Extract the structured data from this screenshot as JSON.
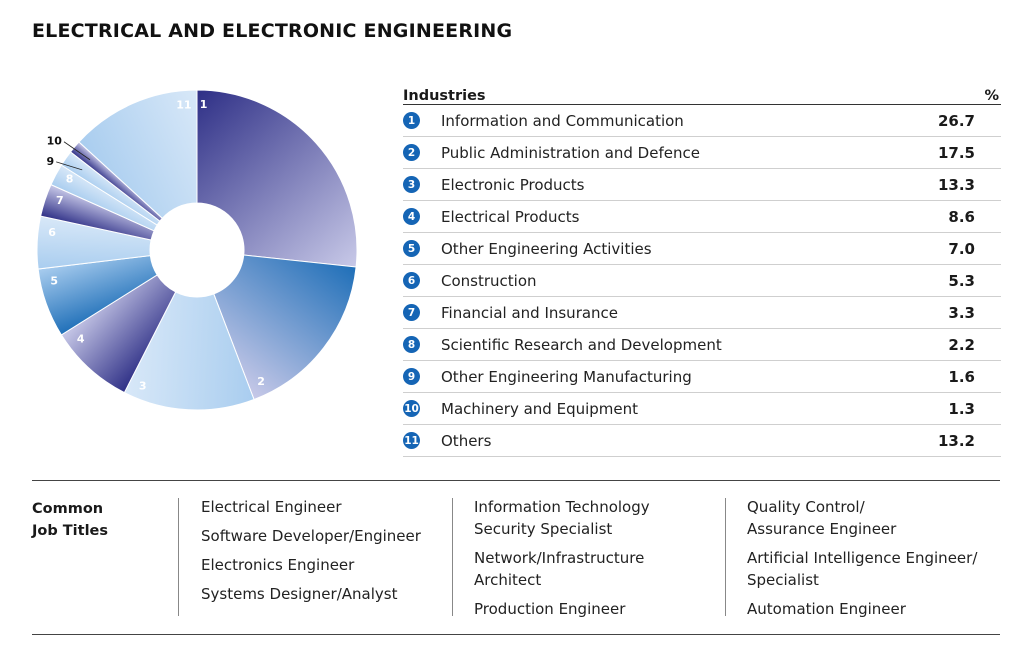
{
  "title": "ELECTRICAL AND ELECTRONIC ENGINEERING",
  "chart_data": {
    "type": "pie",
    "title": "",
    "columns": [
      "Industries",
      "%"
    ],
    "slices": [
      {
        "id": "1",
        "label": "Information and Communication",
        "value": 26.7,
        "display": "26.7"
      },
      {
        "id": "2",
        "label": "Public Administration and Defence",
        "value": 17.5,
        "display": "17.5"
      },
      {
        "id": "3",
        "label": "Electronic Products",
        "value": 13.3,
        "display": "13.3"
      },
      {
        "id": "4",
        "label": "Electrical Products",
        "value": 8.6,
        "display": "8.6"
      },
      {
        "id": "5",
        "label": "Other Engineering Activities",
        "value": 7.0,
        "display": "7.0"
      },
      {
        "id": "6",
        "label": "Construction",
        "value": 5.3,
        "display": "5.3"
      },
      {
        "id": "7",
        "label": "Financial and Insurance",
        "value": 3.3,
        "display": "3.3"
      },
      {
        "id": "8",
        "label": "Scientific Research and Development",
        "value": 2.2,
        "display": "2.2"
      },
      {
        "id": "9",
        "label": "Other Engineering Manufacturing",
        "value": 1.6,
        "display": "1.6"
      },
      {
        "id": "10",
        "label": "Machinery and Equipment",
        "value": 1.3,
        "display": "1.3"
      },
      {
        "id": "11",
        "label": "Others",
        "value": 13.2,
        "display": "13.2"
      }
    ],
    "colors": {
      "dark_navy": "#2e2f86",
      "lavender": "#c8c9e8",
      "blue": "#1f6fb8",
      "light_blue": "#a9cdef",
      "pale_blue": "#d8e8f8",
      "badge": "#1565b5"
    }
  },
  "jobs": {
    "heading_line1": "Common",
    "heading_line2": "Job Titles",
    "col1": [
      "Electrical Engineer",
      "Software Developer/Engineer",
      "Electronics Engineer",
      "Systems Designer/Analyst"
    ],
    "col2": [
      "Information Technology",
      "Security Specialist",
      "Network/Infrastructure",
      "Architect",
      "Production Engineer"
    ],
    "col3": [
      "Quality Control/",
      "Assurance Engineer",
      "Artificial Intelligence Engineer/",
      "Specialist",
      "Automation Engineer"
    ]
  }
}
